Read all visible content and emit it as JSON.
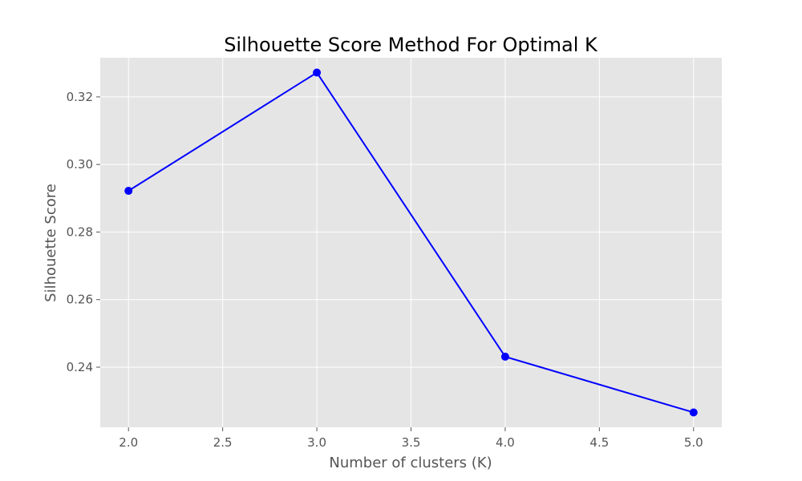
{
  "chart_data": {
    "type": "line",
    "title": "Silhouette Score Method For Optimal K",
    "xlabel": "Number of clusters (K)",
    "ylabel": "Silhouette Score",
    "x": [
      2,
      3,
      4,
      5
    ],
    "series": [
      {
        "values": [
          0.2922,
          0.3272,
          0.2431,
          0.2266
        ],
        "color": "#0000ff",
        "marker": "circle"
      }
    ],
    "xlim": [
      1.85,
      5.15
    ],
    "ylim": [
      0.2222,
      0.3316
    ],
    "xticks": [
      2.0,
      2.5,
      3.0,
      3.5,
      4.0,
      4.5,
      5.0
    ],
    "xtick_labels": [
      "2.0",
      "2.5",
      "3.0",
      "3.5",
      "4.0",
      "4.5",
      "5.0"
    ],
    "yticks": [
      0.24,
      0.26,
      0.28,
      0.3,
      0.32
    ],
    "ytick_labels": [
      "0.24",
      "0.26",
      "0.28",
      "0.30",
      "0.32"
    ],
    "grid": true,
    "plot_background": "#e5e5e5",
    "grid_color": "#ffffff"
  }
}
